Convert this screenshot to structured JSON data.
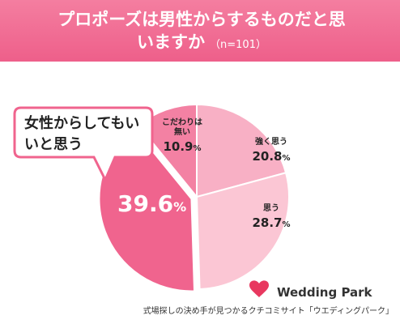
{
  "chart_data": {
    "type": "pie",
    "title": "プロポーズは男性からするものだと思いますか",
    "subtitle": "（n=101）",
    "categories": [
      "強く思う",
      "思う",
      "女性からしてもいいと思う",
      "こだわりは無い"
    ],
    "values": [
      20.8,
      28.7,
      39.6,
      10.9
    ],
    "unit": "%",
    "colors": [
      "#f8b0c5",
      "#fbc6d4",
      "#f0648e",
      "#f381a3"
    ]
  },
  "footer": {
    "logo": "Wedding Park",
    "caption": "式場探しの決め手が見つかるクチコミサイト「ウエディングパーク」"
  }
}
